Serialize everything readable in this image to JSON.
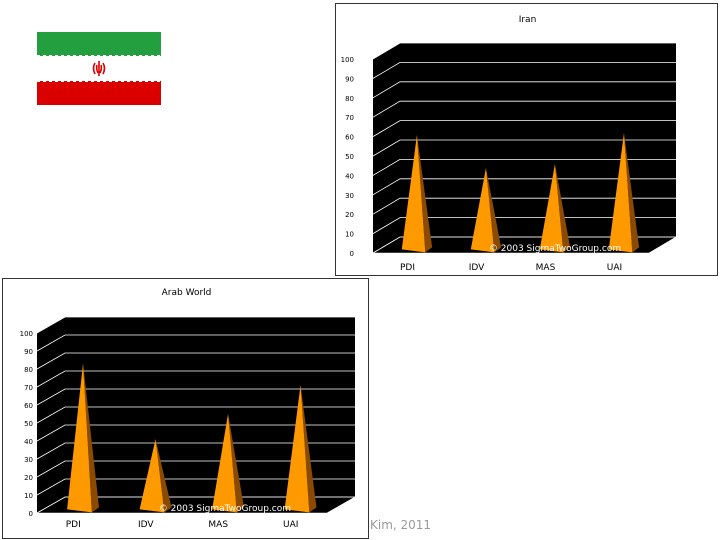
{
  "colors": {
    "flag_green": "#239f40",
    "flag_white": "#ffffff",
    "flag_red": "#da0000",
    "plot_background": "#000000",
    "gridline": "#ffffff",
    "pyramid_light": "#ff9900",
    "pyramid_dark": "#8a4a00"
  },
  "watermark": "© 2003 SigmaTwoGroup.com",
  "footer_text": "Kim, 2011",
  "chart_data": [
    {
      "type": "bar",
      "style": "3d-pyramid",
      "title": "Iran",
      "categories": [
        "PDI",
        "IDV",
        "MAS",
        "UAI"
      ],
      "values": [
        58,
        41,
        43,
        59
      ],
      "ylim": [
        0,
        100
      ],
      "yticks": [
        0,
        10,
        20,
        30,
        40,
        50,
        60,
        70,
        80,
        90,
        100
      ],
      "grid": true
    },
    {
      "type": "bar",
      "style": "3d-pyramid",
      "title": "Arab World",
      "categories": [
        "PDI",
        "IDV",
        "MAS",
        "UAI"
      ],
      "values": [
        80,
        38,
        52,
        68
      ],
      "ylim": [
        0,
        100
      ],
      "yticks": [
        0,
        10,
        20,
        30,
        40,
        50,
        60,
        70,
        80,
        90,
        100
      ],
      "grid": true
    }
  ]
}
